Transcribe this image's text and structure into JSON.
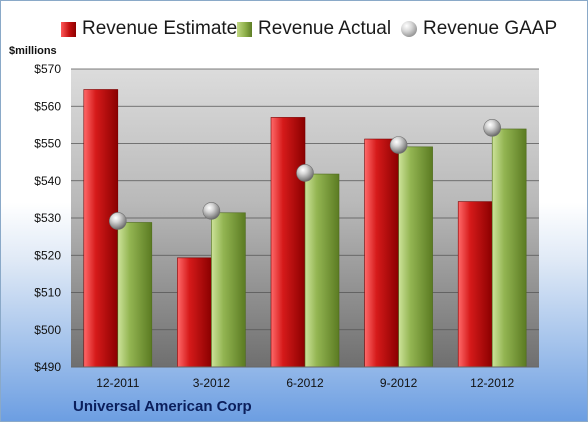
{
  "colors": {
    "estimate": "#c41010",
    "actual": "#8eb04a",
    "gaap": "#9a9a9a",
    "company": "#0b1f5c"
  },
  "legend": {
    "estimate": "Revenue Estimate",
    "actual": "Revenue Actual",
    "gaap": "Revenue GAAP"
  },
  "units_label": "$millions",
  "company": "Universal American Corp",
  "chart_data": {
    "type": "bar",
    "categories": [
      "12-2011",
      "3-2012",
      "6-2012",
      "9-2012",
      "12-2012"
    ],
    "series": [
      {
        "name": "Revenue Estimate",
        "kind": "bar",
        "values": [
          564.5,
          519.3,
          557.0,
          551.2,
          534.4
        ]
      },
      {
        "name": "Revenue Actual",
        "kind": "bar",
        "values": [
          528.8,
          531.4,
          541.8,
          549.1,
          553.9
        ]
      },
      {
        "name": "Revenue GAAP",
        "kind": "marker",
        "values": [
          529.2,
          531.9,
          542.1,
          549.6,
          554.2
        ]
      }
    ],
    "ylabel": "$millions",
    "ylim": [
      490,
      570
    ],
    "yticks": [
      490,
      500,
      510,
      520,
      530,
      540,
      550,
      560,
      570
    ],
    "ytick_labels": [
      "$490",
      "$500",
      "$510",
      "$520",
      "$530",
      "$540",
      "$550",
      "$560",
      "$570"
    ],
    "grid": true,
    "legend_position": "top"
  }
}
